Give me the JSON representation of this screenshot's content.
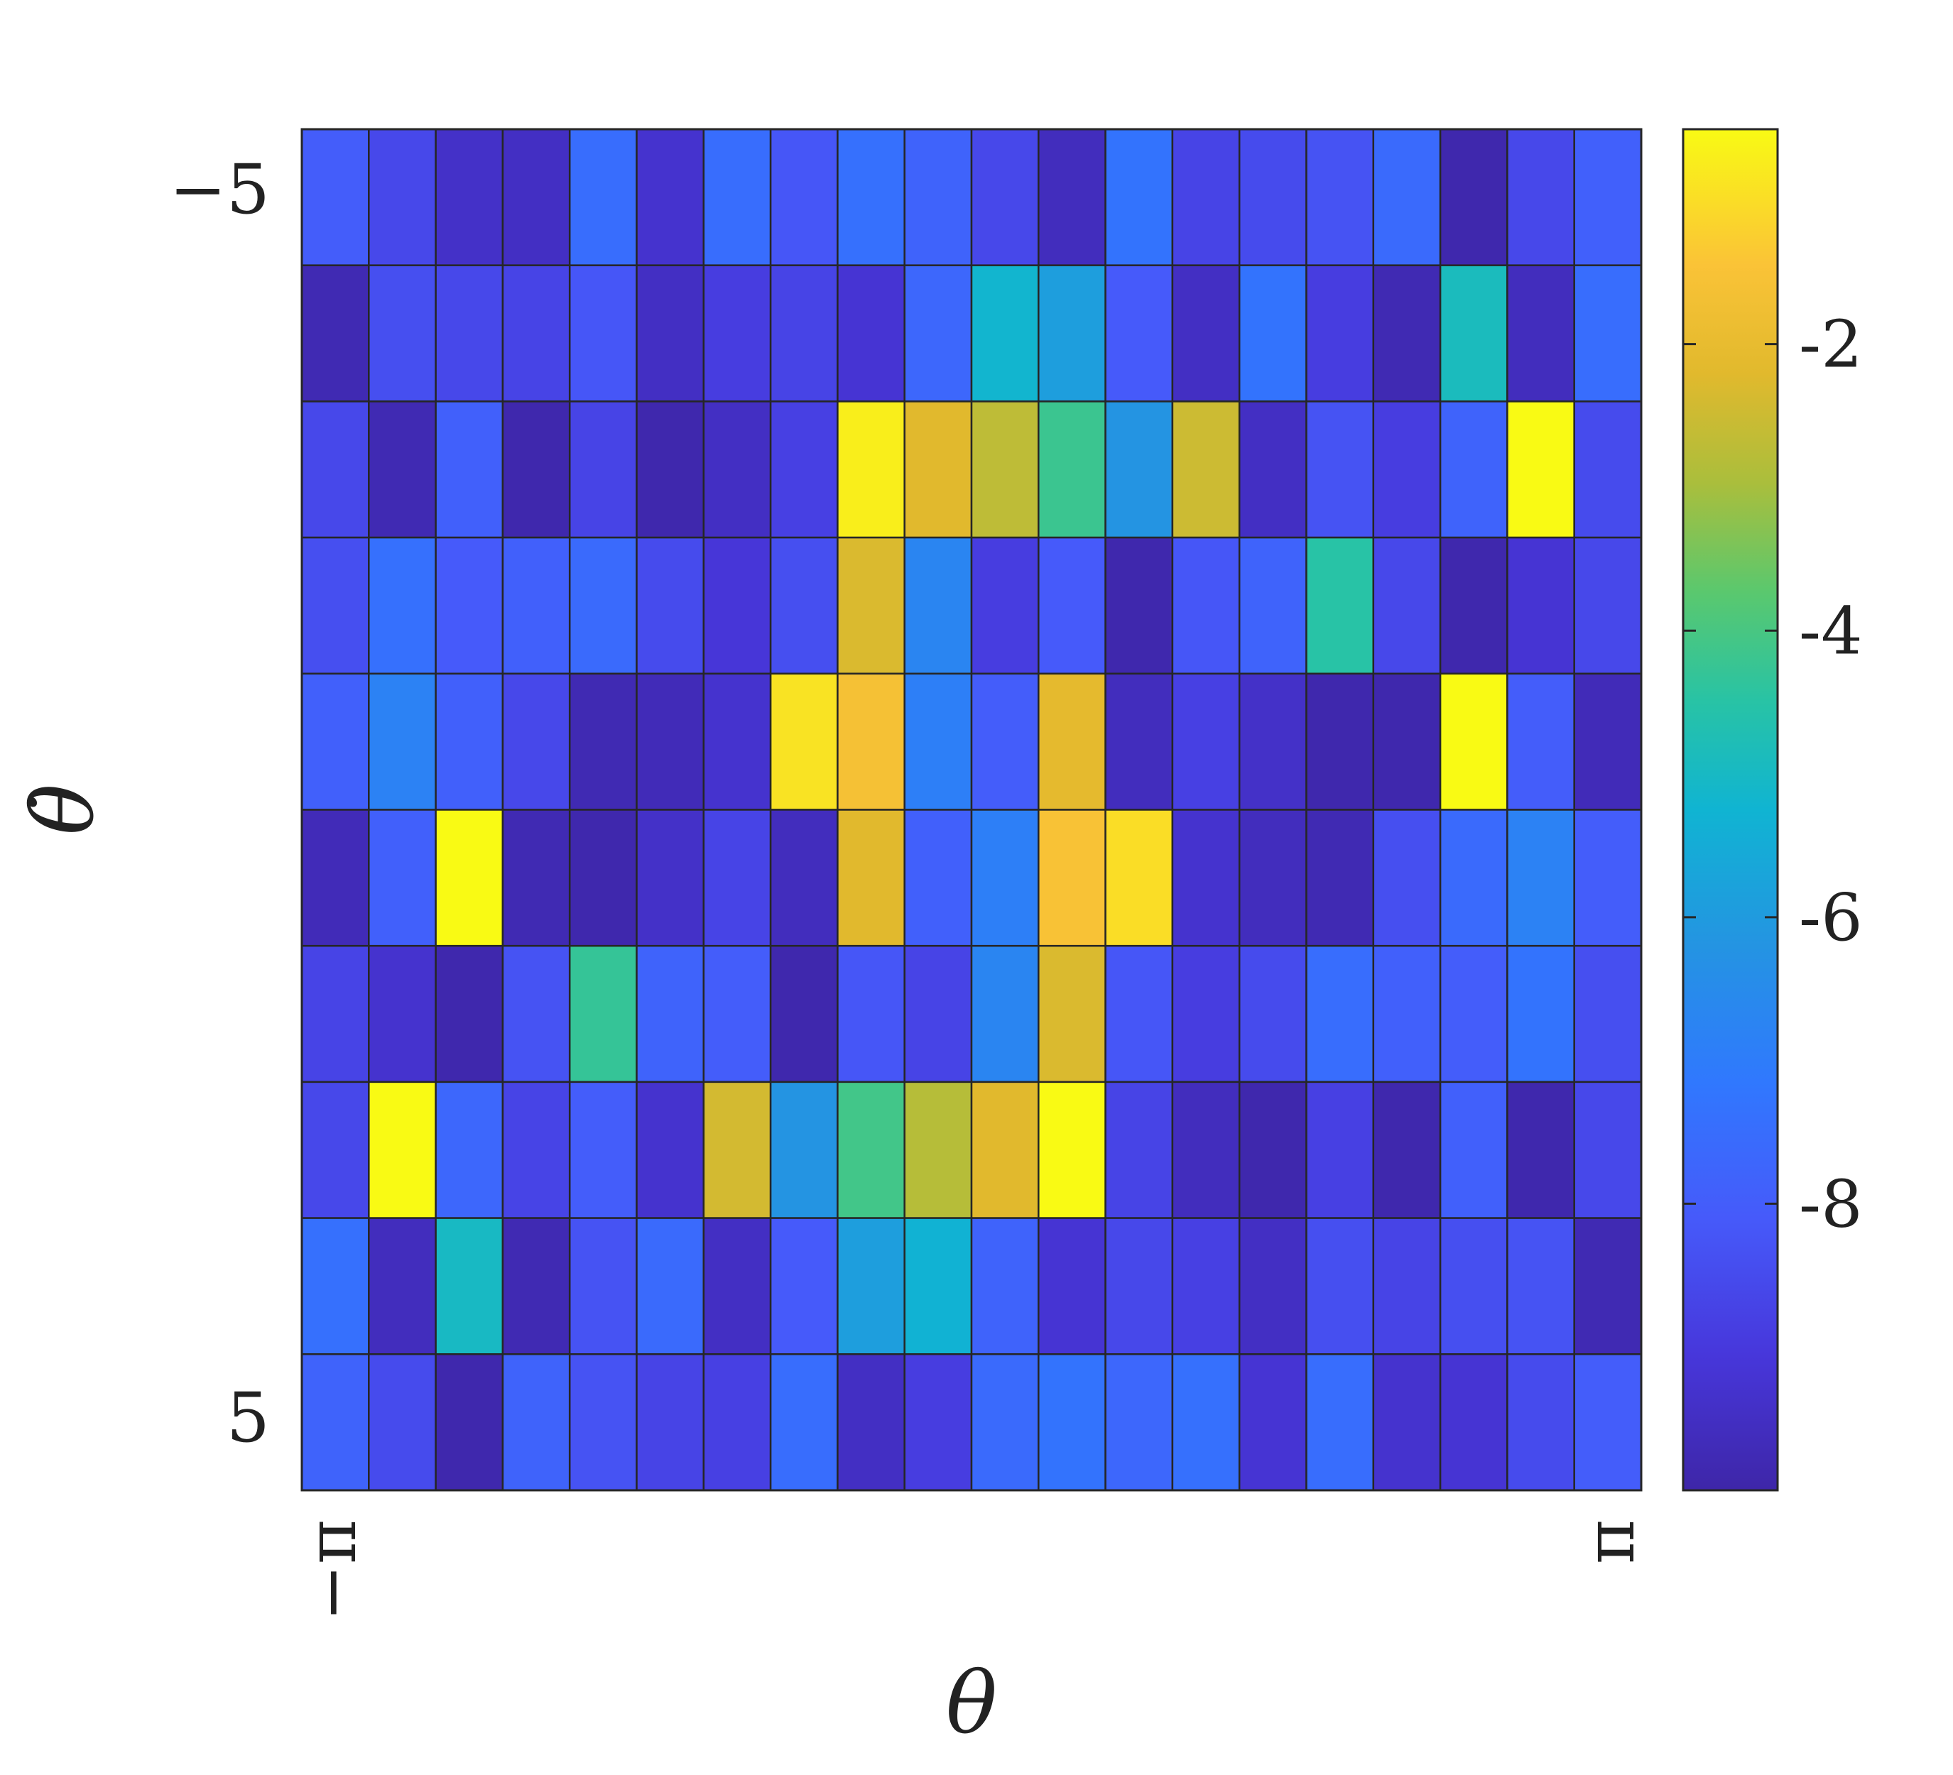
{
  "chart_data": {
    "type": "heatmap",
    "title": "",
    "xlabel": "θ",
    "ylabel": "θ̇",
    "x_tick_labels": [
      "−π",
      "π"
    ],
    "y_tick_labels": [
      "−5",
      "5"
    ],
    "xlim": [
      -3.14159,
      3.14159
    ],
    "ylim": [
      -5,
      5
    ],
    "n_cols": 20,
    "n_rows": 10,
    "colorbar": {
      "ticks": [
        -2,
        -4,
        -6,
        -8
      ],
      "tick_labels": [
        "-2",
        "-4",
        "-6",
        "-8"
      ],
      "range": [
        -10.0,
        -0.5
      ],
      "colormap": "parula"
    },
    "grid": true,
    "values": [
      [
        -8.0,
        -8.6,
        -9.4,
        -9.5,
        -7.5,
        -9.3,
        -7.5,
        -8.2,
        -7.4,
        -7.8,
        -8.6,
        -9.6,
        -7.3,
        -8.7,
        -8.5,
        -8.3,
        -7.6,
        -9.9,
        -8.6,
        -7.9
      ],
      [
        -9.8,
        -8.4,
        -8.6,
        -8.7,
        -8.2,
        -9.5,
        -8.9,
        -8.7,
        -9.2,
        -7.7,
        -5.2,
        -5.9,
        -8.1,
        -9.5,
        -7.3,
        -8.9,
        -9.8,
        -4.9,
        -9.6,
        -7.5
      ],
      [
        -8.6,
        -9.8,
        -7.9,
        -9.9,
        -8.7,
        -9.9,
        -9.5,
        -8.8,
        -0.7,
        -2.2,
        -2.7,
        -4.2,
        -6.2,
        -2.5,
        -9.5,
        -8.3,
        -8.9,
        -7.8,
        -0.5,
        -8.5
      ],
      [
        -8.4,
        -7.4,
        -8.1,
        -7.9,
        -7.6,
        -8.5,
        -9.1,
        -8.4,
        -2.3,
        -6.7,
        -8.9,
        -8.1,
        -9.9,
        -8.2,
        -7.8,
        -4.5,
        -8.6,
        -9.9,
        -9.2,
        -8.6
      ],
      [
        -7.9,
        -6.8,
        -7.9,
        -8.6,
        -9.8,
        -9.7,
        -9.3,
        -0.9,
        -1.6,
        -6.9,
        -8.0,
        -2.1,
        -9.6,
        -8.8,
        -9.4,
        -9.9,
        -9.9,
        -0.5,
        -8.0,
        -9.7
      ],
      [
        -9.7,
        -7.9,
        -0.5,
        -9.8,
        -9.9,
        -9.4,
        -8.7,
        -9.6,
        -2.2,
        -7.9,
        -6.9,
        -1.5,
        -1.0,
        -9.3,
        -9.6,
        -9.8,
        -8.4,
        -7.6,
        -6.8,
        -8.0
      ],
      [
        -8.7,
        -9.3,
        -9.9,
        -8.3,
        -4.3,
        -7.8,
        -8.0,
        -9.9,
        -8.2,
        -8.7,
        -6.7,
        -2.3,
        -8.2,
        -8.9,
        -8.5,
        -7.5,
        -7.9,
        -8.0,
        -7.3,
        -8.4
      ],
      [
        -8.6,
        -0.5,
        -7.7,
        -8.7,
        -8.0,
        -9.3,
        -2.4,
        -6.2,
        -4.1,
        -2.8,
        -2.2,
        -0.5,
        -8.7,
        -9.6,
        -9.9,
        -8.8,
        -9.9,
        -7.9,
        -9.9,
        -8.6
      ],
      [
        -7.4,
        -9.6,
        -5.0,
        -9.8,
        -8.3,
        -7.6,
        -9.5,
        -8.1,
        -5.9,
        -5.3,
        -7.8,
        -9.2,
        -8.6,
        -8.8,
        -9.5,
        -8.4,
        -8.7,
        -8.4,
        -8.3,
        -9.8
      ],
      [
        -7.8,
        -8.5,
        -9.9,
        -7.8,
        -8.3,
        -8.7,
        -8.8,
        -7.5,
        -9.5,
        -8.9,
        -7.6,
        -7.3,
        -7.7,
        -7.4,
        -9.2,
        -7.5,
        -9.3,
        -9.2,
        -8.5,
        -8.0
      ]
    ]
  }
}
